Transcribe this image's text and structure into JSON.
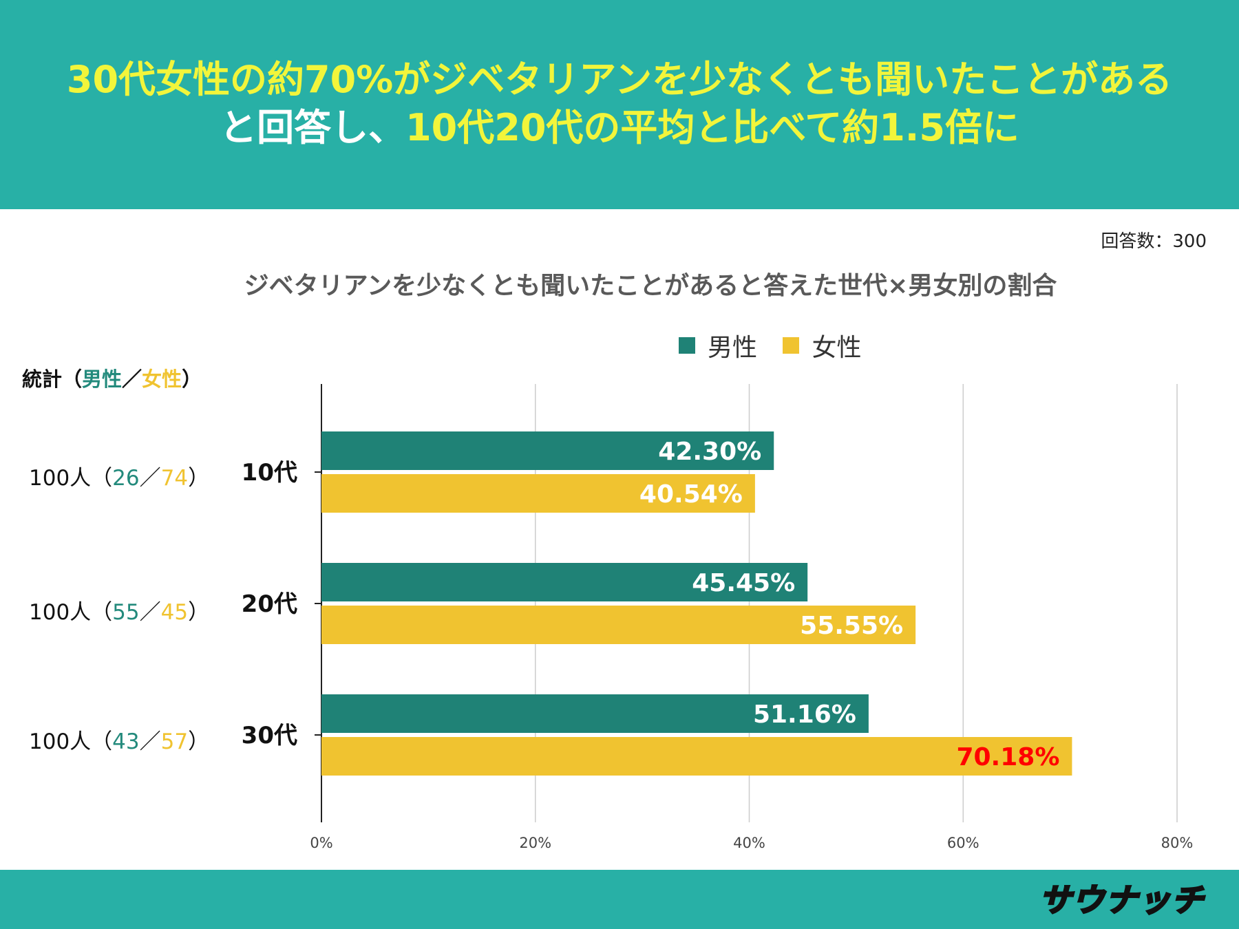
{
  "header": {
    "line1": "30代女性の約70%がジベタリアンを少なくとも聞いたことがある",
    "line2_white": "と回答し、",
    "line2_yellow": "10代20代の平均と比べて約1.5倍に"
  },
  "response_count": "回答数：300",
  "stats": {
    "header_prefix": "統計（",
    "header_male": "男性",
    "header_sep": "／",
    "header_female": "女性",
    "header_suffix": "）",
    "rows": [
      {
        "total": "100人（",
        "male": "26",
        "sep": "／",
        "female": "74",
        "close": "）"
      },
      {
        "total": "100人（",
        "male": "55",
        "sep": "／",
        "female": "45",
        "close": "）"
      },
      {
        "total": "100人（",
        "male": "43",
        "sep": "／",
        "female": "57",
        "close": "）"
      }
    ]
  },
  "chart_data": {
    "type": "bar",
    "orientation": "horizontal",
    "title": "ジベタリアンを少なくとも聞いたことがあると答えた世代×男女別の割合",
    "categories": [
      "10代",
      "20代",
      "30代"
    ],
    "series": [
      {
        "name": "男性",
        "color": "#1f8276",
        "values": [
          42.3,
          45.45,
          51.16
        ],
        "labels": [
          "42.30%",
          "45.45%",
          "51.16%"
        ]
      },
      {
        "name": "女性",
        "color": "#f0c330",
        "values": [
          40.54,
          55.55,
          70.18
        ],
        "labels": [
          "40.54%",
          "55.55%",
          "70.18%"
        ]
      }
    ],
    "highlight": {
      "series": 1,
      "index": 2,
      "color": "#ff0000"
    },
    "xlim": [
      0,
      80
    ],
    "xticks": [
      0,
      20,
      40,
      60,
      80
    ],
    "xtick_labels": [
      "0%",
      "20%",
      "40%",
      "60%",
      "80%"
    ],
    "grid": true,
    "legend": "top"
  },
  "logo": "サウナッチ"
}
